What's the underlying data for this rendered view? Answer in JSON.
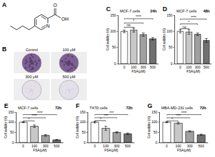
{
  "panel_A": {
    "label": "A",
    "atoms": [
      "N",
      "O",
      "OH"
    ]
  },
  "panel_B": {
    "label": "B",
    "conditions": [
      "Control",
      "100 μM",
      "300 μM",
      "500 μM"
    ]
  },
  "chart_data": [
    {
      "type": "bar",
      "panel": "C",
      "title": "MCF-7 cells",
      "annotations": [
        "24h"
      ],
      "xlabel": "FSA(μM)",
      "ylabel": "Cell avibility (%)",
      "categories": [
        "0",
        "100",
        "300",
        "500"
      ],
      "values": [
        100,
        104,
        90,
        77
      ],
      "errors": [
        4,
        6,
        5,
        4
      ],
      "colors": [
        "#ffffff",
        "#c8c8c8",
        "#a0a0a0",
        "#707070"
      ],
      "ylim": [
        0,
        150
      ],
      "yticks": [
        0,
        50,
        100,
        150
      ],
      "grid": false,
      "comparisons": [
        {
          "from": "0",
          "to": "100",
          "text": "ns"
        },
        {
          "from": "0",
          "to": "300",
          "text": "*"
        },
        {
          "from": "0",
          "to": "500",
          "text": "****"
        }
      ]
    },
    {
      "type": "bar",
      "panel": "D",
      "title": "MCF-7 cells",
      "annotations": [
        "48h"
      ],
      "xlabel": "FSA(μM)",
      "ylabel": "Cell avibility (%)",
      "categories": [
        "0",
        "100",
        "300",
        "500"
      ],
      "values": [
        100,
        98,
        91,
        72
      ],
      "errors": [
        5,
        7,
        4,
        6
      ],
      "colors": [
        "#ffffff",
        "#c8c8c8",
        "#a0a0a0",
        "#707070"
      ],
      "ylim": [
        0,
        150
      ],
      "yticks": [
        0,
        50,
        100,
        150
      ],
      "grid": false,
      "comparisons": [
        {
          "from": "0",
          "to": "100",
          "text": "ns"
        },
        {
          "from": "0",
          "to": "300",
          "text": "*"
        },
        {
          "from": "0",
          "to": "500",
          "text": "****"
        }
      ]
    },
    {
      "type": "bar",
      "panel": "E",
      "title": "MCF-7 cells",
      "annotations": [
        "72h"
      ],
      "xlabel": "FSA(μM)",
      "ylabel": "Cell avibility (%)",
      "categories": [
        "0",
        "100",
        "300",
        "500"
      ],
      "values": [
        100,
        80,
        35,
        13
      ],
      "errors": [
        3,
        6,
        4,
        2
      ],
      "colors": [
        "#ffffff",
        "#c8c8c8",
        "#a0a0a0",
        "#707070"
      ],
      "ylim": [
        0,
        150
      ],
      "yticks": [
        0,
        50,
        100,
        150
      ],
      "grid": false,
      "comparisons": [
        {
          "from": "0",
          "to": "100",
          "text": "*"
        },
        {
          "from": "0",
          "to": "300",
          "text": "****"
        },
        {
          "from": "0",
          "to": "500",
          "text": "****"
        }
      ]
    },
    {
      "type": "bar",
      "panel": "F",
      "title": "T47D cells",
      "annotations": [
        "72h"
      ],
      "xlabel": "FSA(μM)",
      "ylabel": "Cell avibility (%)",
      "categories": [
        "0",
        "100",
        "300",
        "500"
      ],
      "values": [
        100,
        70,
        50,
        43
      ],
      "errors": [
        4,
        10,
        3,
        4
      ],
      "colors": [
        "#ffffff",
        "#c8c8c8",
        "#a0a0a0",
        "#707070"
      ],
      "ylim": [
        0,
        150
      ],
      "yticks": [
        0,
        50,
        100,
        150
      ],
      "grid": false,
      "comparisons": [
        {
          "from": "0",
          "to": "100",
          "text": "*"
        },
        {
          "from": "0",
          "to": "300",
          "text": "***"
        },
        {
          "from": "0",
          "to": "500",
          "text": "***"
        }
      ]
    },
    {
      "type": "bar",
      "panel": "G",
      "title": "MBA-MD-231 cells",
      "annotations": [
        "72h"
      ],
      "xlabel": "FSA(μM)",
      "ylabel": "Cell avibility (%)",
      "categories": [
        "0",
        "100",
        "300",
        "500"
      ],
      "values": [
        100,
        95,
        55,
        38
      ],
      "errors": [
        3,
        4,
        3,
        3
      ],
      "colors": [
        "#ffffff",
        "#c8c8c8",
        "#a0a0a0",
        "#707070"
      ],
      "ylim": [
        0,
        150
      ],
      "yticks": [
        0,
        50,
        100,
        150
      ],
      "grid": false,
      "comparisons": [
        {
          "from": "0",
          "to": "100",
          "text": "*"
        },
        {
          "from": "0",
          "to": "300",
          "text": "***"
        },
        {
          "from": "0",
          "to": "500",
          "text": "****"
        }
      ]
    }
  ]
}
